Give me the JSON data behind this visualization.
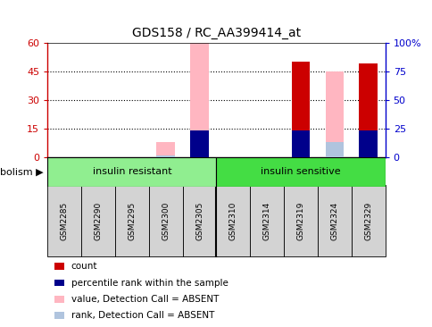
{
  "title": "GDS158 / RC_AA399414_at",
  "samples": [
    "GSM2285",
    "GSM2290",
    "GSM2295",
    "GSM2300",
    "GSM2305",
    "GSM2310",
    "GSM2314",
    "GSM2319",
    "GSM2324",
    "GSM2329"
  ],
  "group_label": "metabolism",
  "groups": [
    {
      "label": "insulin resistant",
      "color": "#90ee90",
      "start": 0,
      "end": 4
    },
    {
      "label": "insulin sensitive",
      "color": "#44dd44",
      "start": 5,
      "end": 9
    }
  ],
  "count_values": [
    0,
    0,
    0,
    0,
    0,
    0,
    0,
    50,
    0,
    49
  ],
  "rank_values": [
    0,
    0,
    0,
    0,
    14,
    0,
    0,
    14,
    0,
    14
  ],
  "absent_value_values": [
    0,
    0,
    0,
    8,
    60,
    0,
    0,
    0,
    45,
    0
  ],
  "absent_rank_values": [
    0,
    0,
    0,
    1,
    0,
    0,
    0,
    0,
    8,
    0
  ],
  "ylim_left": [
    0,
    60
  ],
  "ylim_right": [
    0,
    100
  ],
  "yticks_left": [
    0,
    15,
    30,
    45,
    60
  ],
  "yticks_right": [
    0,
    25,
    50,
    75,
    100
  ],
  "ytick_labels_left": [
    "0",
    "15",
    "30",
    "45",
    "60"
  ],
  "ytick_labels_right": [
    "0",
    "25",
    "50",
    "75",
    "100%"
  ],
  "left_axis_color": "#cc0000",
  "right_axis_color": "#0000cc",
  "bar_width": 0.55,
  "absent_value_color": "#ffb6c1",
  "absent_rank_color": "#b0c4de",
  "count_color": "#cc0000",
  "rank_color": "#00008b",
  "bg_color": "#ffffff",
  "sample_box_color": "#d3d3d3",
  "legend_items": [
    {
      "color": "#cc0000",
      "label": "count"
    },
    {
      "color": "#00008b",
      "label": "percentile rank within the sample"
    },
    {
      "color": "#ffb6c1",
      "label": "value, Detection Call = ABSENT"
    },
    {
      "color": "#b0c4de",
      "label": "rank, Detection Call = ABSENT"
    }
  ]
}
